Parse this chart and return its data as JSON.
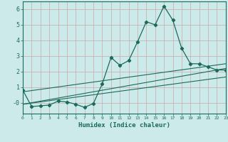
{
  "xlabel": "Humidex (Indice chaleur)",
  "bg_color": "#cceaea",
  "grid_color": "#c8a8a8",
  "line_color": "#1a6b5a",
  "x_min": 0,
  "x_max": 23,
  "y_min": -0.7,
  "y_max": 6.5,
  "main_x": [
    0,
    1,
    2,
    3,
    4,
    5,
    6,
    7,
    8,
    9,
    10,
    11,
    12,
    13,
    14,
    15,
    16,
    17,
    18,
    19,
    20,
    21,
    22,
    23
  ],
  "main_y": [
    0.8,
    -0.25,
    -0.2,
    -0.15,
    0.1,
    0.05,
    -0.1,
    -0.3,
    -0.05,
    1.2,
    2.9,
    2.4,
    2.7,
    3.9,
    5.2,
    5.0,
    6.2,
    5.3,
    3.5,
    2.5,
    2.5,
    2.3,
    2.1,
    2.1
  ],
  "trend1_x": [
    0,
    23
  ],
  "trend1_y": [
    -0.1,
    2.2
  ],
  "trend2_x": [
    0,
    23
  ],
  "trend2_y": [
    -0.1,
    1.65
  ],
  "trend3_x": [
    0,
    23
  ],
  "trend3_y": [
    0.7,
    2.5
  ]
}
